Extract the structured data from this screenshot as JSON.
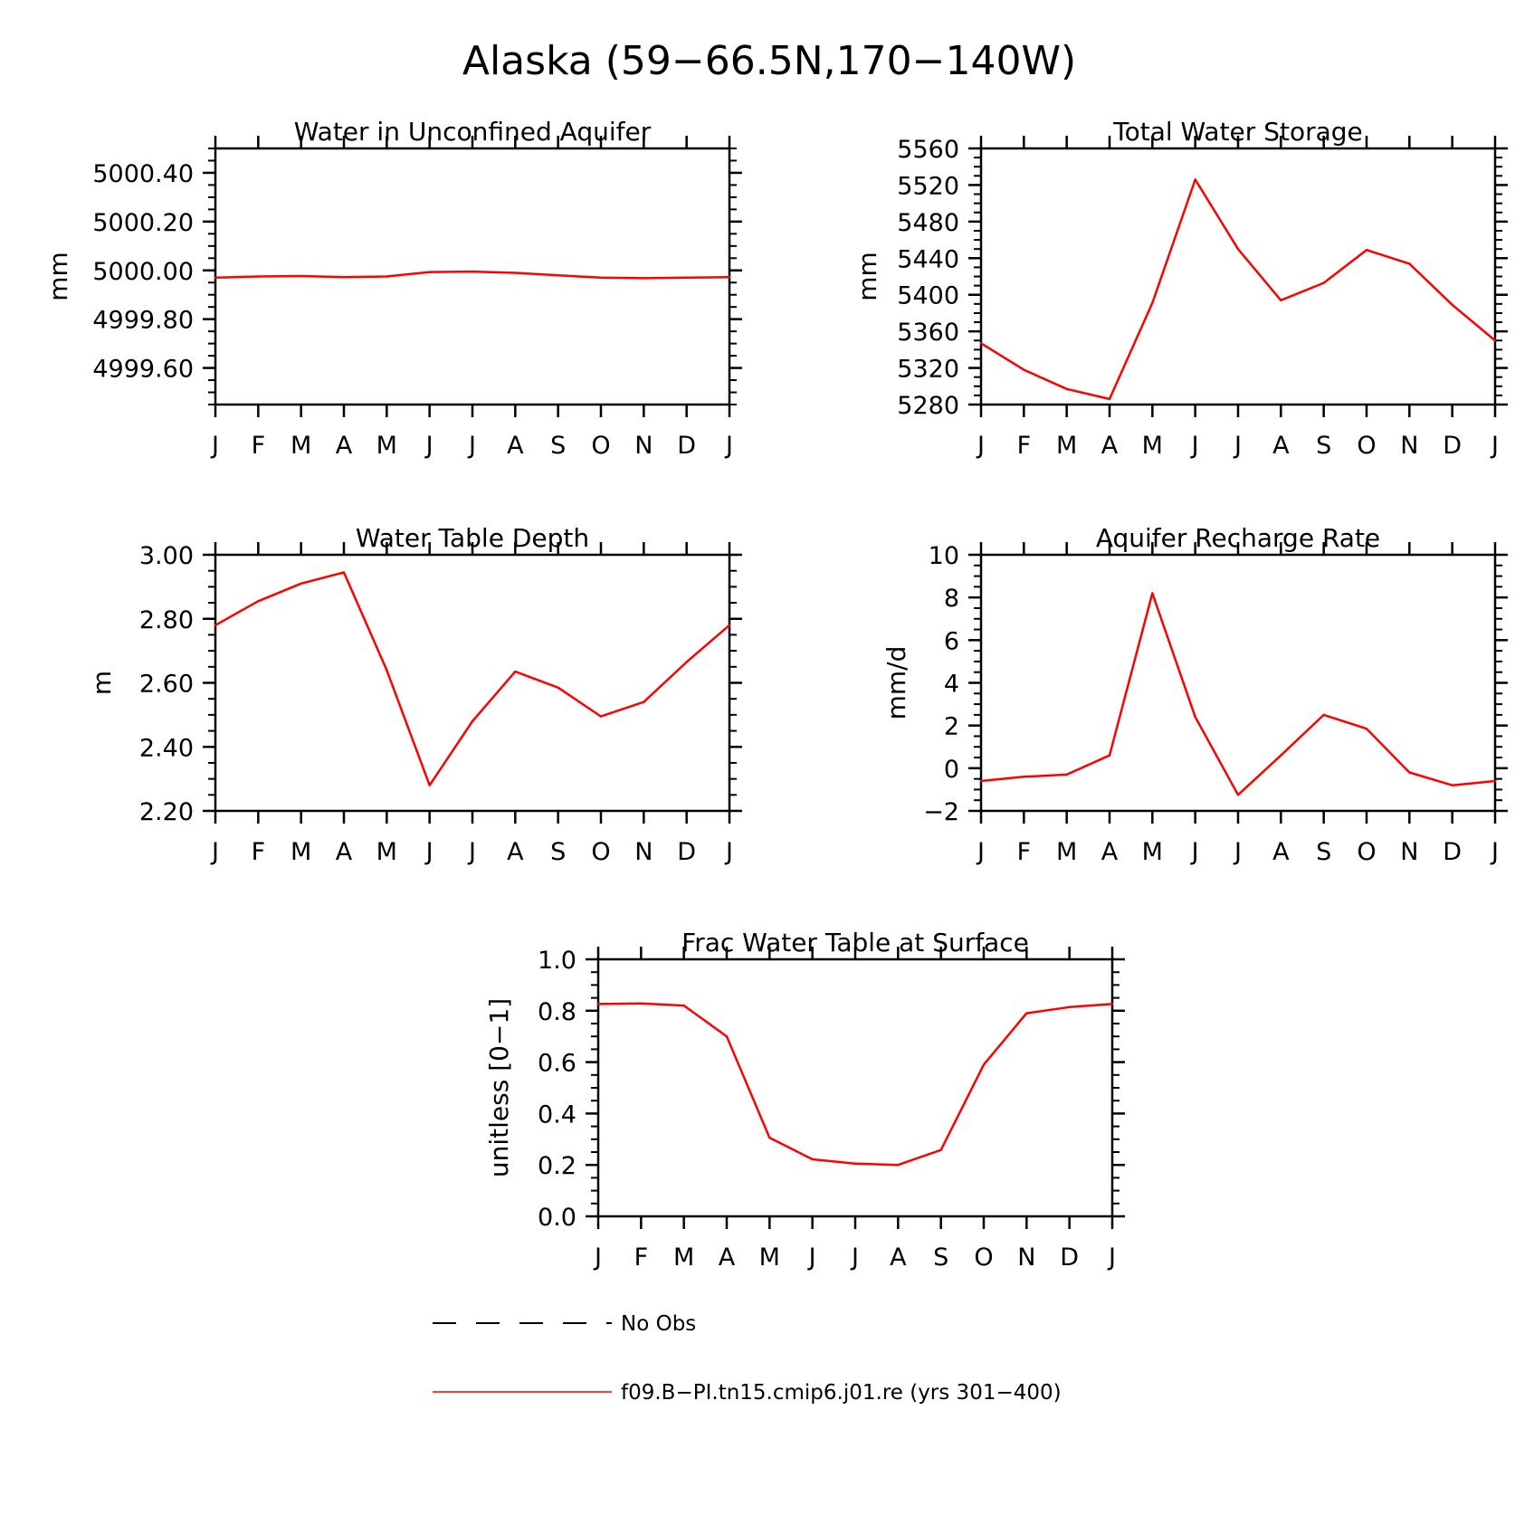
{
  "figure_title": "Alaska (59−66.5N,170−140W)",
  "colors": {
    "model": "#ff0000",
    "obs": "#000000",
    "axis": "#000000"
  },
  "legend": [
    {
      "label": "No Obs",
      "style": "dashed",
      "color": "#000000"
    },
    {
      "label": "f09.B−PI.tn15.cmip6.j01.re (yrs 301−400)",
      "style": "solid",
      "color": "#ff0000"
    }
  ],
  "chart_data": [
    {
      "type": "line",
      "title": "Water in Unconfined Aquifer",
      "ylabel": "mm",
      "xlabel": "",
      "categories": [
        "J",
        "F",
        "M",
        "A",
        "M",
        "J",
        "J",
        "A",
        "S",
        "O",
        "N",
        "D",
        "J"
      ],
      "ylim": [
        4999.45,
        5000.5
      ],
      "yticks": [
        4999.6,
        4999.8,
        5000.0,
        5000.2,
        5000.4
      ],
      "ytick_labels": [
        "4999.60",
        "4999.80",
        "5000.00",
        "5000.20",
        "5000.40"
      ],
      "series": [
        {
          "values": [
            4999.97,
            4999.975,
            4999.977,
            4999.972,
            4999.975,
            4999.993,
            4999.995,
            4999.99,
            4999.98,
            4999.97,
            4999.968,
            4999.97,
            4999.972
          ]
        }
      ]
    },
    {
      "type": "line",
      "title": "Total Water Storage",
      "ylabel": "mm",
      "xlabel": "",
      "categories": [
        "J",
        "F",
        "M",
        "A",
        "M",
        "J",
        "J",
        "A",
        "S",
        "O",
        "N",
        "D",
        "J"
      ],
      "ylim": [
        5280,
        5560
      ],
      "yticks": [
        5280,
        5320,
        5360,
        5400,
        5440,
        5480,
        5520,
        5560
      ],
      "ytick_labels": [
        "5280",
        "5320",
        "5360",
        "5400",
        "5440",
        "5480",
        "5520",
        "5560"
      ],
      "series": [
        {
          "values": [
            5347,
            5318,
            5297,
            5286,
            5391,
            5526,
            5450,
            5394,
            5413,
            5449,
            5434,
            5389,
            5350
          ]
        }
      ]
    },
    {
      "type": "line",
      "title": "Water Table Depth",
      "ylabel": "m",
      "xlabel": "",
      "categories": [
        "J",
        "F",
        "M",
        "A",
        "M",
        "J",
        "J",
        "A",
        "S",
        "O",
        "N",
        "D",
        "J"
      ],
      "ylim": [
        2.2,
        3.0
      ],
      "yticks": [
        2.2,
        2.4,
        2.6,
        2.8,
        3.0
      ],
      "ytick_labels": [
        "2.20",
        "2.40",
        "2.60",
        "2.80",
        "3.00"
      ],
      "series": [
        {
          "values": [
            2.78,
            2.855,
            2.91,
            2.945,
            2.64,
            2.28,
            2.48,
            2.635,
            2.585,
            2.495,
            2.54,
            2.665,
            2.78
          ]
        }
      ]
    },
    {
      "type": "line",
      "title": "Aquifer Recharge Rate",
      "ylabel": "mm/d",
      "xlabel": "",
      "categories": [
        "J",
        "F",
        "M",
        "A",
        "M",
        "J",
        "J",
        "A",
        "S",
        "O",
        "N",
        "D",
        "J"
      ],
      "ylim": [
        -2,
        10
      ],
      "yticks": [
        -2,
        0,
        2,
        4,
        6,
        8,
        10
      ],
      "ytick_labels": [
        "−2",
        "0",
        "2",
        "4",
        "6",
        "8",
        "10"
      ],
      "series": [
        {
          "values": [
            -0.6,
            -0.4,
            -0.3,
            0.6,
            8.2,
            2.4,
            -1.25,
            0.6,
            2.5,
            1.85,
            -0.2,
            -0.8,
            -0.6
          ]
        }
      ]
    },
    {
      "type": "line",
      "title": "Frac Water Table at Surface",
      "ylabel": "unitless [0−1]",
      "xlabel": "",
      "categories": [
        "J",
        "F",
        "M",
        "A",
        "M",
        "J",
        "J",
        "A",
        "S",
        "O",
        "N",
        "D",
        "J"
      ],
      "ylim": [
        0,
        1
      ],
      "yticks": [
        0,
        0.2,
        0.4,
        0.6,
        0.8,
        1.0
      ],
      "ytick_labels": [
        "0.0",
        "0.2",
        "0.4",
        "0.6",
        "0.8",
        "1.0"
      ],
      "series": [
        {
          "values": [
            0.826,
            0.828,
            0.82,
            0.7,
            0.306,
            0.222,
            0.205,
            0.2,
            0.258,
            0.59,
            0.79,
            0.814,
            0.826
          ]
        }
      ]
    }
  ]
}
